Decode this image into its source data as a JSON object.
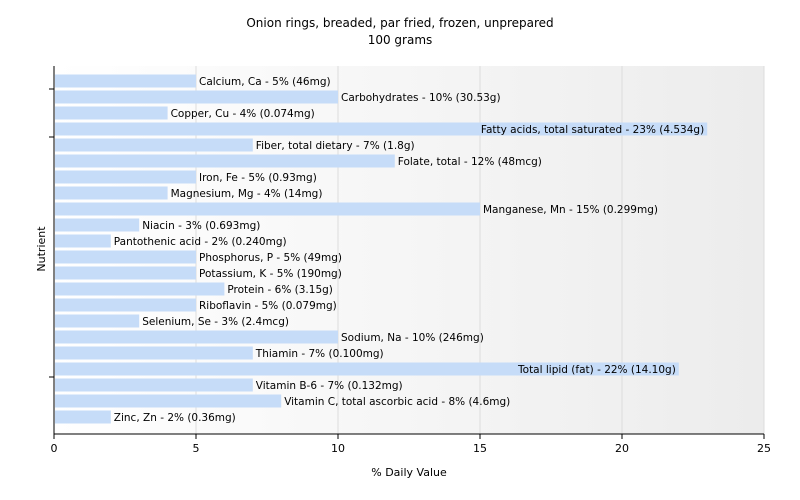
{
  "chart_data": {
    "type": "bar",
    "orientation": "horizontal",
    "title": "Onion rings, breaded, par fried, frozen, unprepared",
    "subtitle": "100 grams",
    "xlabel": "% Daily Value",
    "ylabel": "Nutrient",
    "xlim": [
      0,
      25
    ],
    "xticks": [
      0,
      5,
      10,
      15,
      20,
      25
    ],
    "grid": true,
    "bar_color": "#c6dcf8",
    "categories": [
      "Calcium, Ca",
      "Carbohydrates",
      "Copper, Cu",
      "Fatty acids, total saturated",
      "Fiber, total dietary",
      "Folate, total",
      "Iron, Fe",
      "Magnesium, Mg",
      "Manganese, Mn",
      "Niacin",
      "Pantothenic acid",
      "Phosphorus, P",
      "Potassium, K",
      "Protein",
      "Riboflavin",
      "Selenium, Se",
      "Sodium, Na",
      "Thiamin",
      "Total lipid (fat)",
      "Vitamin B-6",
      "Vitamin C, total ascorbic acid",
      "Zinc, Zn"
    ],
    "values": [
      5,
      10,
      4,
      23,
      7,
      12,
      5,
      4,
      15,
      3,
      2,
      5,
      5,
      6,
      5,
      3,
      10,
      7,
      22,
      7,
      8,
      2
    ],
    "labels": [
      "Calcium, Ca - 5% (46mg)",
      "Carbohydrates - 10% (30.53g)",
      "Copper, Cu - 4% (0.074mg)",
      "Fatty acids, total saturated - 23% (4.534g)",
      "Fiber, total dietary - 7% (1.8g)",
      "Folate, total - 12% (48mcg)",
      "Iron, Fe - 5% (0.93mg)",
      "Magnesium, Mg - 4% (14mg)",
      "Manganese, Mn - 15% (0.299mg)",
      "Niacin - 3% (0.693mg)",
      "Pantothenic acid - 2% (0.240mg)",
      "Phosphorus, P - 5% (49mg)",
      "Potassium, K - 5% (190mg)",
      "Protein - 6% (3.15g)",
      "Riboflavin - 5% (0.079mg)",
      "Selenium, Se - 3% (2.4mcg)",
      "Sodium, Na - 10% (246mg)",
      "Thiamin - 7% (0.100mg)",
      "Total lipid (fat) - 22% (14.10g)",
      "Vitamin B-6 - 7% (0.132mg)",
      "Vitamin C, total ascorbic acid - 8% (4.6mg)",
      "Zinc, Zn - 2% (0.36mg)"
    ]
  }
}
